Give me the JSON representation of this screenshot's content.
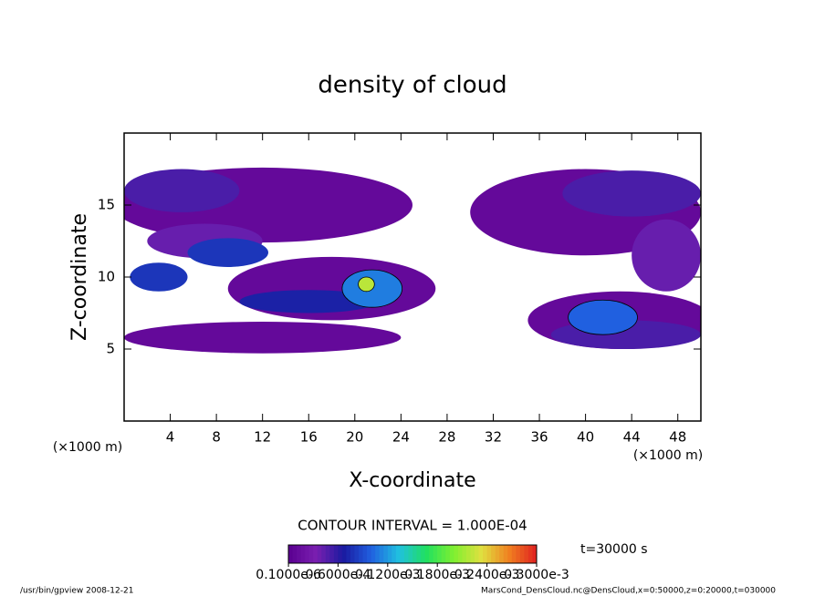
{
  "chart_data": {
    "type": "contour",
    "title": "density of cloud",
    "x_label": "X-coordinate",
    "y_label": "Z-coordinate",
    "x_unit": "(×1000 m)",
    "y_unit": "(×1000 m)",
    "xlim": [
      0,
      50
    ],
    "ylim": [
      0,
      20
    ],
    "xticks": [
      4,
      8,
      12,
      16,
      20,
      24,
      28,
      32,
      36,
      40,
      44,
      48
    ],
    "yticks": [
      5,
      10,
      15
    ],
    "contour_interval": "CONTOUR INTERVAL = 1.000E-04",
    "time_label": "t=30000 s",
    "colormap": [
      "#5a0090",
      "#7a1fb0",
      "#1a1aa0",
      "#2060e0",
      "#20c0e0",
      "#20e060",
      "#80f030",
      "#e0e040",
      "#f08020",
      "#e02020"
    ],
    "clim": [
      0,
      0.0003
    ],
    "cticks": [
      {
        "value": 1e-07,
        "label": "0.1000e-6"
      },
      {
        "value": 6e-05,
        "label": "0.6000e-4"
      },
      {
        "value": 0.00012,
        "label": "0.1200e-3"
      },
      {
        "value": 0.00018,
        "label": "0.1800e-3"
      },
      {
        "value": 0.00024,
        "label": "0.2400e-3"
      },
      {
        "value": 0.0003,
        "label": "0.3000e-3"
      }
    ],
    "patches": [
      {
        "x": 12,
        "z": 15,
        "dx": 13,
        "dz": 2.6,
        "value": 1e-05
      },
      {
        "x": 12,
        "z": 5.8,
        "dx": 12,
        "dz": 1.1,
        "value": 1e-05
      },
      {
        "x": 18,
        "z": 9.2,
        "dx": 9,
        "dz": 2.2,
        "value": 1e-05
      },
      {
        "x": 40,
        "z": 14.5,
        "dx": 10,
        "dz": 3,
        "value": 1e-05
      },
      {
        "x": 43,
        "z": 7,
        "dx": 8,
        "dz": 2,
        "value": 1e-05
      },
      {
        "x": 5,
        "z": 16,
        "dx": 5,
        "dz": 1.5,
        "value": 5e-05
      },
      {
        "x": 7,
        "z": 12.5,
        "dx": 5,
        "dz": 1.2,
        "value": 4e-05
      },
      {
        "x": 3,
        "z": 10,
        "dx": 2.5,
        "dz": 1,
        "value": 8e-05
      },
      {
        "x": 9,
        "z": 11.7,
        "dx": 3.5,
        "dz": 1,
        "value": 8e-05
      },
      {
        "x": 16,
        "z": 8.3,
        "dx": 6,
        "dz": 0.8,
        "value": 7e-05
      },
      {
        "x": 21.5,
        "z": 9.2,
        "dx": 2.6,
        "dz": 1.3,
        "value": 0.00011
      },
      {
        "x": 21,
        "z": 9.5,
        "dx": 0.7,
        "dz": 0.5,
        "value": 0.00022
      },
      {
        "x": 43.5,
        "z": 6,
        "dx": 6.5,
        "dz": 1,
        "value": 5e-05
      },
      {
        "x": 41.5,
        "z": 7.2,
        "dx": 3,
        "dz": 1.2,
        "value": 0.0001
      },
      {
        "x": 44,
        "z": 15.8,
        "dx": 6,
        "dz": 1.6,
        "value": 5e-05
      },
      {
        "x": 47,
        "z": 11.5,
        "dx": 3,
        "dz": 2.5,
        "value": 4e-05
      }
    ],
    "footer_left": "/usr/bin/gpview  2008-12-21",
    "footer_right": "MarsCond_DensCloud.nc@DensCloud,x=0:50000,z=0:20000,t=030000"
  }
}
